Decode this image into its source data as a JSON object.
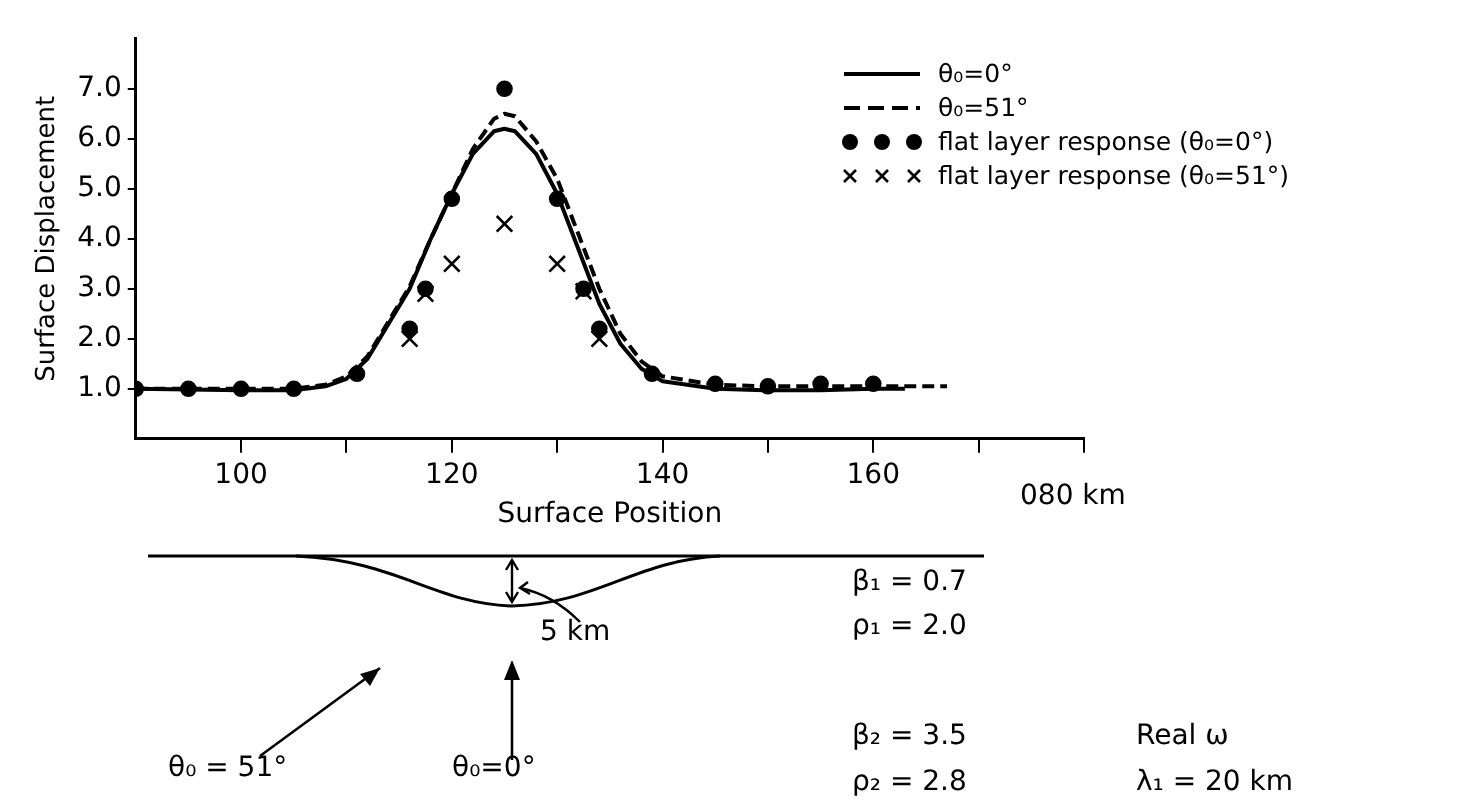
{
  "chart_data": {
    "type": "line",
    "xlabel": "Surface Position",
    "ylabel": "Surface Displacement",
    "xlim": [
      90,
      180
    ],
    "xticks": [
      100,
      {
        "value": 110,
        "label": null
      },
      120,
      {
        "value": 130,
        "label": null
      },
      140,
      {
        "value": 150,
        "label": null
      },
      160,
      {
        "value": 170,
        "label": null
      },
      {
        "value": 180,
        "label": null
      }
    ],
    "ylim": [
      0,
      8
    ],
    "yticks": [
      {
        "value": 1,
        "label": "1.0"
      },
      {
        "value": 2,
        "label": "2.0"
      },
      {
        "value": 3,
        "label": "3.0"
      },
      {
        "value": 4,
        "label": "4.0"
      },
      {
        "value": 5,
        "label": "5.0"
      },
      {
        "value": 6,
        "label": "6.0"
      },
      {
        "value": 7,
        "label": "7.0"
      }
    ],
    "grid": false,
    "legend": "top right",
    "series": [
      {
        "name": "θ₀=0°",
        "type": "line",
        "color": "#000000",
        "line_style": "solid",
        "marker": "none",
        "x": [
          90,
          100,
          105,
          108,
          110,
          112,
          114,
          116,
          118,
          120,
          122,
          124,
          125,
          126,
          128,
          130,
          132,
          134,
          136,
          138,
          140,
          145,
          150,
          155,
          160,
          163
        ],
        "values": [
          1.0,
          0.97,
          0.97,
          1.05,
          1.2,
          1.6,
          2.3,
          3.0,
          4.0,
          4.9,
          5.7,
          6.15,
          6.2,
          6.15,
          5.7,
          4.9,
          3.8,
          2.7,
          1.9,
          1.4,
          1.15,
          1.0,
          0.97,
          0.97,
          1.0,
          1.0
        ]
      },
      {
        "name": "θ₀=51°",
        "type": "line",
        "color": "#000000",
        "line_style": "dashed",
        "marker": "none",
        "x": [
          90,
          100,
          105,
          108,
          110,
          112,
          114,
          116,
          118,
          120,
          122,
          124,
          125,
          126,
          128,
          130,
          132,
          134,
          136,
          138,
          140,
          145,
          150,
          155,
          160,
          167
        ],
        "values": [
          1.0,
          1.0,
          1.0,
          1.08,
          1.25,
          1.65,
          2.35,
          3.05,
          4.0,
          4.9,
          5.8,
          6.4,
          6.5,
          6.45,
          5.95,
          5.2,
          4.1,
          3.0,
          2.1,
          1.55,
          1.25,
          1.08,
          1.05,
          1.05,
          1.05,
          1.05
        ]
      },
      {
        "name": "flat layer response (θ₀=0°)",
        "type": "scatter",
        "color": "#000000",
        "marker": "circle",
        "x": [
          90,
          95,
          100,
          105,
          111,
          116,
          117.5,
          120,
          125,
          130,
          132.5,
          134,
          139,
          145,
          150,
          155,
          160
        ],
        "values": [
          1.0,
          1.0,
          1.0,
          1.0,
          1.3,
          2.2,
          3.0,
          4.8,
          7.0,
          4.8,
          3.0,
          2.2,
          1.3,
          1.1,
          1.05,
          1.1,
          1.1
        ]
      },
      {
        "name": "flat layer response (θ₀=51°)",
        "type": "scatter",
        "color": "#000000",
        "marker": "cross",
        "x": [
          116,
          117.5,
          120,
          125,
          130,
          132.5,
          134
        ],
        "values": [
          2.0,
          2.9,
          3.5,
          4.3,
          3.5,
          2.95,
          2.0
        ]
      }
    ],
    "annotations": [
      "080 km",
      "5 km",
      "θ₀ = 51°",
      "θ₀=0°",
      "β₁ = 0.7",
      "ρ₁ = 2.0",
      "β₂ = 3.5",
      "ρ₂ = 2.8",
      "Real ω",
      "λ₁ = 20 km"
    ]
  }
}
